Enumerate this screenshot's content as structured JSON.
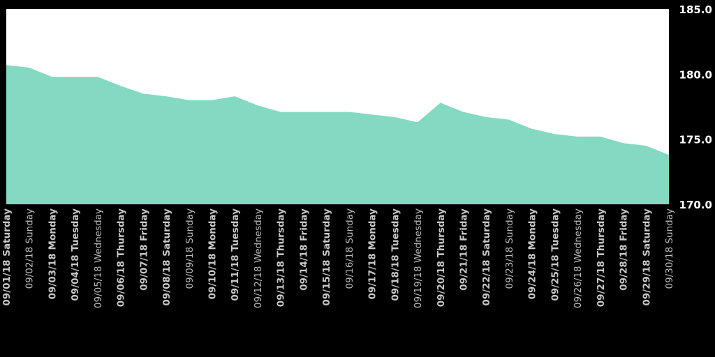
{
  "chart_data": {
    "type": "area",
    "categories": [
      "09/01/18 Saturday",
      "09/02/18 Sunday",
      "09/03/18 Monday",
      "09/04/18 Tuesday",
      "09/05/18 Wednesday",
      "09/06/18 Thursday",
      "09/07/18 Friday",
      "09/08/18 Saturday",
      "09/09/18 Sunday",
      "09/10/18 Monday",
      "09/11/18 Tuesday",
      "09/12/18 Wednesday",
      "09/13/18 Thursday",
      "09/14/18 Friday",
      "09/15/18 Saturday",
      "09/16/18 Sunday",
      "09/17/18 Monday",
      "09/18/18 Tuesday",
      "09/19/18 Wednesday",
      "09/20/18 Thursday",
      "09/21/18 Friday",
      "09/22/18 Saturday",
      "09/23/18 Sunday",
      "09/24/18 Monday",
      "09/25/18 Tuesday",
      "09/26/18 Wednesday",
      "09/27/18 Thursday",
      "09/28/18 Friday",
      "09/29/18 Saturday",
      "09/30/18 Sunday"
    ],
    "series": [
      {
        "values": [
          180.7,
          180.5,
          179.8,
          179.8,
          179.8,
          179.1,
          178.5,
          178.3,
          178.0,
          178.0,
          178.3,
          177.6,
          177.1,
          177.1,
          177.1,
          177.1,
          176.9,
          176.7,
          176.3,
          177.8,
          177.1,
          176.7,
          176.5,
          175.8,
          175.4,
          175.2,
          175.2,
          174.7,
          174.5,
          173.8
        ],
        "color": "#84d9c3"
      }
    ],
    "bold_categories": [
      0,
      2,
      3,
      5,
      6,
      7,
      9,
      10,
      12,
      13,
      14,
      16,
      17,
      19,
      20,
      21,
      23,
      24,
      26,
      27,
      28
    ],
    "y_ticks": [
      "170.0",
      "175.0",
      "180.0",
      "185.0"
    ],
    "ylim": [
      170,
      185
    ],
    "y_axis_position": "right",
    "grid": false,
    "plot_background": "#ffffff",
    "page_background": "#000000",
    "bold_label_color": "#c8c8c8",
    "regular_label_color": "#bbbbbb"
  }
}
